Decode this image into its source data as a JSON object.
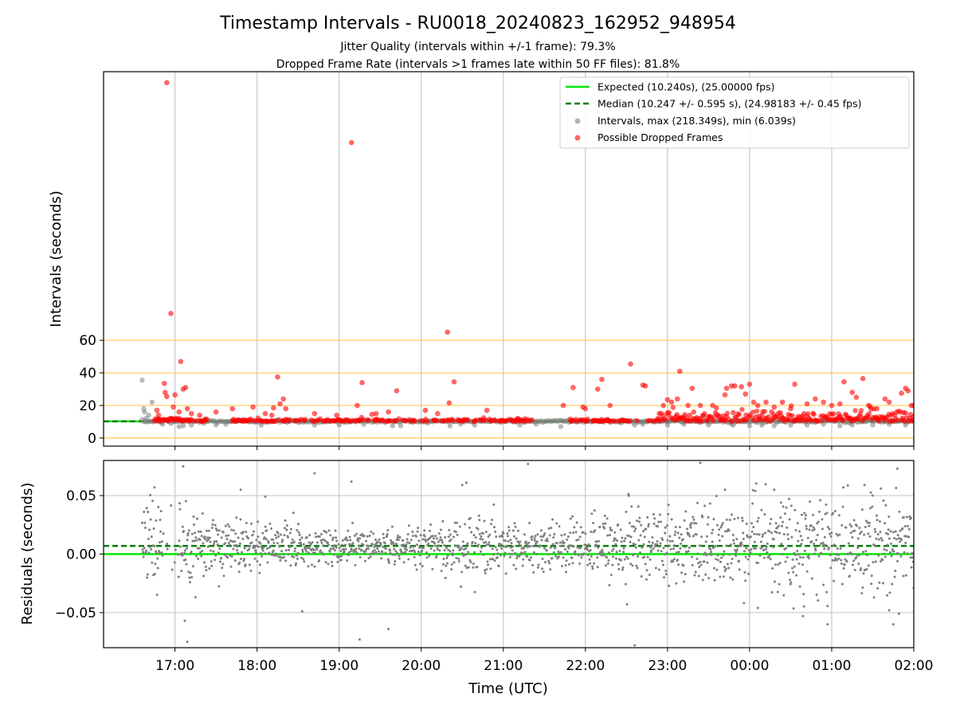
{
  "chart_data": [
    {
      "type": "scatter",
      "title": "Timestamp Intervals - RU0018_20240823_162952_948954",
      "subtitle_lines": [
        "Jitter Quality (intervals within +/-1 frame): 79.3%",
        "Dropped Frame Rate (intervals >1 frames late within 50 FF files): 81.8%"
      ],
      "ylabel": "Intervals (seconds)",
      "xlim_hours": [
        16.13,
        26.0
      ],
      "ylim": [
        -5,
        225
      ],
      "yticks": [
        0,
        20,
        40,
        60
      ],
      "y_tick_labels": [
        "0",
        "20",
        "40",
        "60"
      ],
      "threshold_lines_y": [
        0,
        20,
        40,
        60
      ],
      "threshold_color": "#ffc94d",
      "grid": "x",
      "x_grid_hours": [
        17,
        18,
        19,
        20,
        21,
        22,
        23,
        24,
        25,
        26
      ],
      "legend_position": "upper-right",
      "legend": [
        {
          "label": "Expected (10.240s), (25.00000 fps)",
          "kind": "solid-line",
          "color": "#00e600"
        },
        {
          "label": "Median (10.247 +/- 0.595 s), (24.98183 +/- 0.45 fps)",
          "kind": "dashed-line",
          "color": "#008000"
        },
        {
          "label": "Intervals, max (218.349s), min (6.039s)",
          "kind": "dot",
          "color": "#808080"
        },
        {
          "label": "Possible Dropped Frames",
          "kind": "dot",
          "color": "#ff0000"
        }
      ],
      "expected_interval": 10.24,
      "median_interval": 10.247,
      "series": [
        {
          "name": "Intervals, max (218.349s), min (6.039s)",
          "color": "#808080",
          "points": [
            [
              16.6,
              35.5
            ],
            [
              16.62,
              18
            ],
            [
              16.63,
              16
            ],
            [
              16.65,
              12
            ],
            [
              16.68,
              14
            ],
            [
              16.72,
              22
            ],
            [
              16.8,
              11
            ],
            [
              16.85,
              8.5
            ],
            [
              16.95,
              9
            ],
            [
              17.05,
              7
            ],
            [
              17.1,
              7.5
            ],
            [
              17.2,
              8
            ],
            [
              17.35,
              9
            ],
            [
              17.5,
              8
            ],
            [
              17.62,
              8.5
            ],
            [
              18.05,
              8
            ],
            [
              18.7,
              8
            ],
            [
              19.0,
              8
            ],
            [
              19.3,
              8.5
            ],
            [
              19.65,
              7.5
            ],
            [
              19.75,
              7.5
            ],
            [
              20.35,
              7.5
            ],
            [
              20.65,
              8
            ],
            [
              21.2,
              8
            ],
            [
              21.4,
              8.5
            ],
            [
              21.7,
              7
            ],
            [
              22.6,
              8
            ],
            [
              22.7,
              8.5
            ],
            [
              23.0,
              8
            ],
            [
              23.2,
              8.5
            ],
            [
              23.5,
              8
            ],
            [
              23.8,
              8
            ],
            [
              24.0,
              7.5
            ],
            [
              24.15,
              8
            ],
            [
              24.3,
              7.5
            ],
            [
              24.5,
              8
            ],
            [
              24.7,
              8
            ],
            [
              24.9,
              8.5
            ],
            [
              25.1,
              7.5
            ],
            [
              25.25,
              8
            ],
            [
              25.5,
              8
            ],
            [
              25.7,
              8.5
            ],
            [
              25.9,
              8
            ]
          ]
        },
        {
          "name": "Possible Dropped Frames",
          "color": "#ff0000",
          "points": [
            [
              16.9,
              218.3
            ],
            [
              16.95,
              76.5
            ],
            [
              17.07,
              47
            ],
            [
              17.1,
              30
            ],
            [
              17.13,
              31
            ],
            [
              16.87,
              33.5
            ],
            [
              16.88,
              28
            ],
            [
              16.9,
              25.5
            ],
            [
              17.0,
              26.5
            ],
            [
              16.98,
              19
            ],
            [
              17.05,
              16
            ],
            [
              16.8,
              14
            ],
            [
              16.78,
              17
            ],
            [
              17.15,
              18
            ],
            [
              17.2,
              15
            ],
            [
              17.3,
              14
            ],
            [
              17.5,
              16
            ],
            [
              17.7,
              18
            ],
            [
              17.95,
              19
            ],
            [
              18.1,
              15
            ],
            [
              18.18,
              14
            ],
            [
              18.2,
              18.5
            ],
            [
              18.25,
              37.5
            ],
            [
              18.28,
              21
            ],
            [
              18.32,
              24
            ],
            [
              18.35,
              18
            ],
            [
              18.7,
              15
            ],
            [
              18.97,
              14
            ],
            [
              19.15,
              181.5
            ],
            [
              19.22,
              20
            ],
            [
              19.28,
              34
            ],
            [
              19.4,
              14.5
            ],
            [
              19.45,
              15
            ],
            [
              19.6,
              16
            ],
            [
              19.7,
              29
            ],
            [
              20.05,
              17
            ],
            [
              20.2,
              15
            ],
            [
              20.32,
              65
            ],
            [
              20.34,
              21.5
            ],
            [
              20.4,
              34.5
            ],
            [
              20.8,
              17
            ],
            [
              21.73,
              20
            ],
            [
              21.85,
              31
            ],
            [
              21.97,
              19
            ],
            [
              22.0,
              18
            ],
            [
              22.15,
              30
            ],
            [
              22.2,
              36
            ],
            [
              22.3,
              20
            ],
            [
              22.55,
              45.5
            ],
            [
              22.7,
              32.5
            ],
            [
              22.73,
              32
            ],
            [
              22.9,
              15
            ],
            [
              22.95,
              20
            ],
            [
              23.0,
              23.5
            ],
            [
              23.05,
              22
            ],
            [
              23.12,
              24
            ],
            [
              23.15,
              41
            ],
            [
              23.25,
              20
            ],
            [
              23.3,
              30.5
            ],
            [
              23.4,
              20
            ],
            [
              23.55,
              20
            ],
            [
              23.7,
              26.5
            ],
            [
              23.72,
              30.5
            ],
            [
              23.78,
              32
            ],
            [
              23.82,
              32
            ],
            [
              23.9,
              31.5
            ],
            [
              23.95,
              27
            ],
            [
              24.0,
              33
            ],
            [
              24.05,
              22
            ],
            [
              24.1,
              20
            ],
            [
              24.2,
              22
            ],
            [
              24.3,
              19
            ],
            [
              24.4,
              22
            ],
            [
              24.5,
              18
            ],
            [
              24.55,
              33
            ],
            [
              24.7,
              21
            ],
            [
              24.8,
              24
            ],
            [
              24.9,
              22
            ],
            [
              25.0,
              20
            ],
            [
              25.1,
              21
            ],
            [
              25.15,
              34.5
            ],
            [
              25.25,
              28
            ],
            [
              25.3,
              25
            ],
            [
              25.38,
              36.5
            ],
            [
              25.45,
              20
            ],
            [
              25.55,
              18
            ],
            [
              25.65,
              24
            ],
            [
              25.7,
              22
            ],
            [
              25.85,
              27.5
            ],
            [
              25.9,
              30.5
            ],
            [
              25.93,
              29
            ],
            [
              25.97,
              20
            ],
            [
              26.0,
              20
            ]
          ]
        }
      ],
      "dense_band_note_y": 10.24
    },
    {
      "type": "scatter",
      "ylabel": "Residuals (seconds)",
      "xlabel": "Time (UTC)",
      "xlim_hours": [
        16.13,
        26.0
      ],
      "ylim": [
        -0.08,
        0.08
      ],
      "yticks": [
        -0.05,
        0.0,
        0.05
      ],
      "y_tick_labels": [
        "−0.05",
        "0.00",
        "0.05"
      ],
      "x_tick_hours": [
        17,
        18,
        19,
        20,
        21,
        22,
        23,
        24,
        25,
        26
      ],
      "x_tick_labels": [
        "17:00",
        "18:00",
        "19:00",
        "20:00",
        "21:00",
        "22:00",
        "23:00",
        "00:00",
        "01:00",
        "02:00"
      ],
      "grid": "both",
      "expected_residual": 0.0,
      "median_residual": 0.007,
      "series": [
        {
          "name": "Residuals",
          "color": "#808080",
          "outliers": [
            [
              16.75,
              0.057
            ],
            [
              17.1,
              0.075
            ],
            [
              17.12,
              -0.057
            ],
            [
              17.15,
              -0.075
            ],
            [
              17.8,
              0.055
            ],
            [
              18.1,
              0.049
            ],
            [
              18.55,
              -0.049
            ],
            [
              18.7,
              0.069
            ],
            [
              19.15,
              0.062
            ],
            [
              19.25,
              -0.073
            ],
            [
              19.6,
              -0.064
            ],
            [
              20.5,
              0.059
            ],
            [
              20.55,
              0.061
            ],
            [
              21.3,
              0.077
            ],
            [
              22.6,
              -0.078
            ],
            [
              23.4,
              0.078
            ],
            [
              23.7,
              0.055
            ],
            [
              24.1,
              -0.046
            ],
            [
              24.65,
              -0.053
            ],
            [
              24.95,
              -0.06
            ],
            [
              25.4,
              0.059
            ],
            [
              25.6,
              0.056
            ],
            [
              25.7,
              -0.048
            ],
            [
              25.8,
              0.073
            ],
            [
              25.75,
              -0.06
            ],
            [
              25.82,
              -0.051
            ]
          ],
          "spread_by_hour": [
            [
              16.6,
              0.012
            ],
            [
              17.0,
              0.02
            ],
            [
              17.5,
              0.012
            ],
            [
              18.0,
              0.01
            ],
            [
              19.0,
              0.008
            ],
            [
              20.0,
              0.008
            ],
            [
              20.5,
              0.016
            ],
            [
              21.0,
              0.01
            ],
            [
              22.0,
              0.012
            ],
            [
              22.5,
              0.018
            ],
            [
              23.0,
              0.015
            ],
            [
              24.0,
              0.02
            ],
            [
              25.0,
              0.02
            ],
            [
              26.0,
              0.018
            ]
          ]
        }
      ]
    }
  ]
}
